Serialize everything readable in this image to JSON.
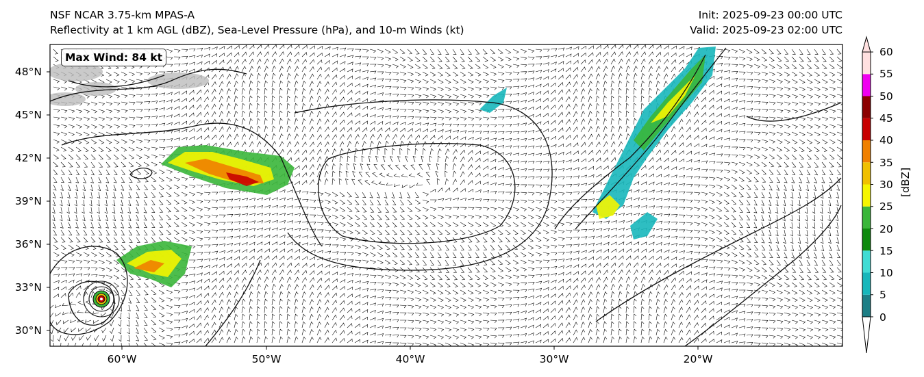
{
  "header": {
    "model": "NSF NCAR 3.75-km MPAS-A",
    "fields": "Reflectivity at 1 km AGL (dBZ), Sea-Level Pressure (hPa), and 10-m Winds (kt)",
    "init": "Init: 2025-09-23 00:00 UTC",
    "valid": "Valid: 2025-09-23 02:00 UTC"
  },
  "map": {
    "projection": "PlateCarree",
    "lon_range": [
      -65,
      -10
    ],
    "lat_range": [
      29,
      50
    ],
    "lat_ticks": [
      "48°N",
      "45°N",
      "42°N",
      "39°N",
      "36°N",
      "33°N",
      "30°N"
    ],
    "lon_ticks": [
      "60°W",
      "50°W",
      "40°W",
      "30°W",
      "20°W"
    ],
    "max_wind_label": "Max Wind: 84 kt",
    "features": [
      "wind barbs (10-m)",
      "sea-level pressure isobars",
      "1-km AGL reflectivity shading",
      "hurricane near 32.5°N 62°W",
      "high pressure near 39.5°N 40°W"
    ]
  },
  "colorbar": {
    "label": "[dBZ]",
    "ticks": [
      "0",
      "5",
      "10",
      "15",
      "20",
      "25",
      "30",
      "35",
      "40",
      "45",
      "50",
      "55",
      "60"
    ],
    "colors": [
      "#1d7f86",
      "#17b7bb",
      "#40dcd4",
      "#0e8a0e",
      "#3ab63a",
      "#f5f500",
      "#f0c000",
      "#f08000",
      "#c80000",
      "#8c0000",
      "#f000f0",
      "#ffe0e0"
    ],
    "extend": "both"
  }
}
